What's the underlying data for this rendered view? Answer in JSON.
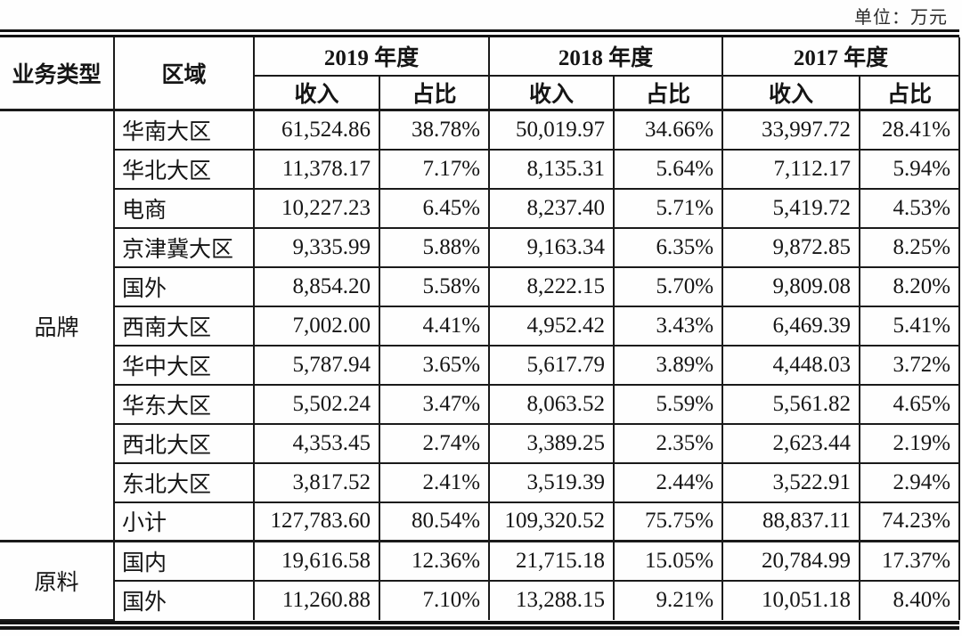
{
  "page": {
    "unit_label": "单位：万元"
  },
  "table": {
    "col_headers": {
      "business_type": "业务类型",
      "region": "区域",
      "year_2019": "2019 年度",
      "year_2018": "2018 年度",
      "year_2017": "2017 年度",
      "income": "收入",
      "share": "占比"
    },
    "sections": [
      {
        "business_type": "品牌",
        "rows": [
          {
            "region": "华南大区",
            "values": [
              "61,524.86",
              "38.78%",
              "50,019.97",
              "34.66%",
              "33,997.72",
              "28.41%"
            ]
          },
          {
            "region": "华北大区",
            "values": [
              "11,378.17",
              "7.17%",
              "8,135.31",
              "5.64%",
              "7,112.17",
              "5.94%"
            ]
          },
          {
            "region": "电商",
            "values": [
              "10,227.23",
              "6.45%",
              "8,237.40",
              "5.71%",
              "5,419.72",
              "4.53%"
            ]
          },
          {
            "region": "京津冀大区",
            "values": [
              "9,335.99",
              "5.88%",
              "9,163.34",
              "6.35%",
              "9,872.85",
              "8.25%"
            ]
          },
          {
            "region": "国外",
            "values": [
              "8,854.20",
              "5.58%",
              "8,222.15",
              "5.70%",
              "9,809.08",
              "8.20%"
            ]
          },
          {
            "region": "西南大区",
            "values": [
              "7,002.00",
              "4.41%",
              "4,952.42",
              "3.43%",
              "6,469.39",
              "5.41%"
            ]
          },
          {
            "region": "华中大区",
            "values": [
              "5,787.94",
              "3.65%",
              "5,617.79",
              "3.89%",
              "4,448.03",
              "3.72%"
            ]
          },
          {
            "region": "华东大区",
            "values": [
              "5,502.24",
              "3.47%",
              "8,063.52",
              "5.59%",
              "5,561.82",
              "4.65%"
            ]
          },
          {
            "region": "西北大区",
            "values": [
              "4,353.45",
              "2.74%",
              "3,389.25",
              "2.35%",
              "2,623.44",
              "2.19%"
            ]
          },
          {
            "region": "东北大区",
            "values": [
              "3,817.52",
              "2.41%",
              "3,519.39",
              "2.44%",
              "3,522.91",
              "2.94%"
            ]
          },
          {
            "region": "小计",
            "values": [
              "127,783.60",
              "80.54%",
              "109,320.52",
              "75.75%",
              "88,837.11",
              "74.23%"
            ]
          }
        ]
      },
      {
        "business_type": "原料",
        "rows": [
          {
            "region": "国内",
            "values": [
              "19,616.58",
              "12.36%",
              "21,715.18",
              "15.05%",
              "20,784.99",
              "17.37%"
            ]
          },
          {
            "region": "国外",
            "values": [
              "11,260.88",
              "7.10%",
              "13,288.15",
              "9.21%",
              "10,051.18",
              "8.40%"
            ]
          }
        ]
      }
    ]
  }
}
